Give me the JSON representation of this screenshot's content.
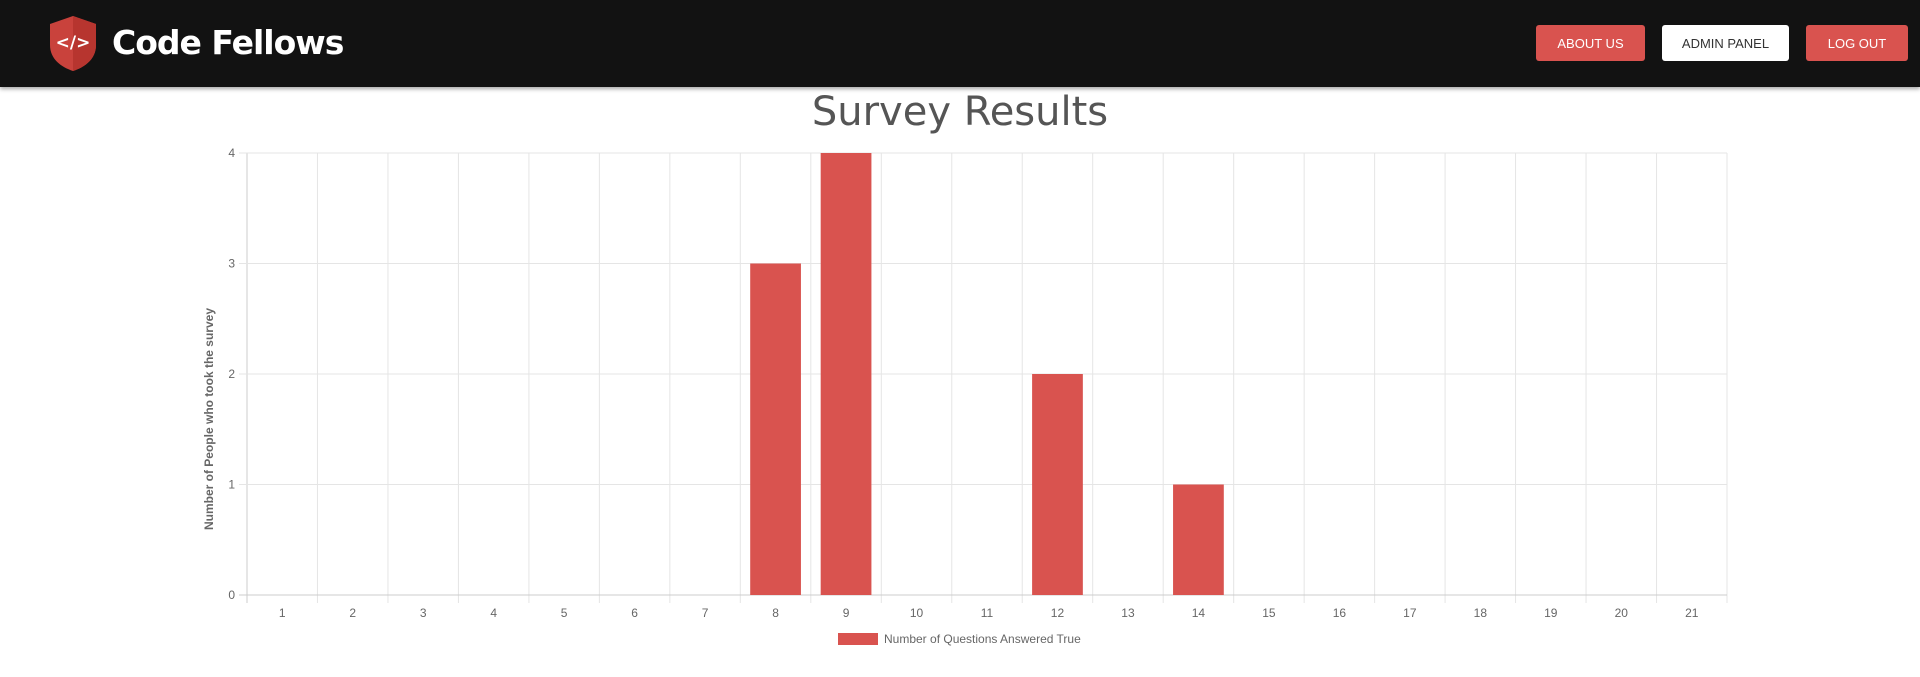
{
  "header": {
    "brand_name": "Code Fellows",
    "logo_icon": "code-shield-icon",
    "buttons": {
      "about_us": "ABOUT US",
      "admin_panel": "ADMIN PANEL",
      "log_out": "LOG OUT"
    }
  },
  "page": {
    "title": "Survey Results"
  },
  "colors": {
    "accent": "#d9534f",
    "navbar": "#121212",
    "grid": "#e5e5e5"
  },
  "chart_data": {
    "type": "bar",
    "title": "",
    "xlabel": "",
    "ylabel": "Number of People who took the survey",
    "categories": [
      "1",
      "2",
      "3",
      "4",
      "5",
      "6",
      "7",
      "8",
      "9",
      "10",
      "11",
      "12",
      "13",
      "14",
      "15",
      "16",
      "17",
      "18",
      "19",
      "20",
      "21"
    ],
    "series": [
      {
        "name": "Number of Questions Answered True",
        "color": "#d9534f",
        "values": [
          0,
          0,
          0,
          0,
          0,
          0,
          0,
          3,
          4,
          0,
          0,
          2,
          0,
          1,
          0,
          0,
          0,
          0,
          0,
          0,
          0
        ]
      }
    ],
    "ylim": [
      0,
      4
    ],
    "yticks": [
      "0",
      "1",
      "2",
      "3",
      "4"
    ],
    "grid": true,
    "legend_position": "bottom"
  }
}
